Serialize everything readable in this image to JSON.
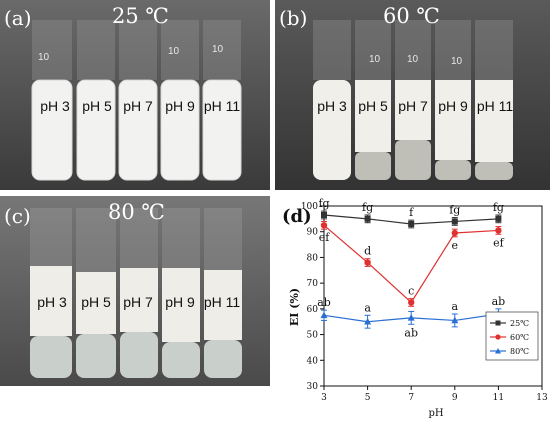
{
  "panels": {
    "a": {
      "letter": "(a)",
      "temp": "25 ℃",
      "tubes": [
        "pH 3",
        "pH 5",
        "pH 7",
        "pH 9",
        "pH 11"
      ],
      "marks": [
        "10",
        "10",
        "10"
      ]
    },
    "b": {
      "letter": "(b)",
      "temp": "60 ℃",
      "tubes": [
        "pH 3",
        "pH 5",
        "pH 7",
        "pH 9",
        "pH 11"
      ],
      "marks": [
        "10",
        "10",
        "10"
      ]
    },
    "c": {
      "letter": "(c)",
      "temp": "80 ℃",
      "tubes": [
        "pH 3",
        "pH 5",
        "pH 7",
        "pH 9",
        "pH 11"
      ]
    }
  },
  "chart_data": {
    "type": "line",
    "panel_letter": "(d)",
    "xlabel": "pH",
    "ylabel": "EI (%)",
    "xlim": [
      3,
      13
    ],
    "ylim": [
      30,
      100
    ],
    "xticks": [
      3,
      5,
      7,
      9,
      11,
      13
    ],
    "yticks": [
      30,
      40,
      50,
      60,
      70,
      80,
      90,
      100
    ],
    "x": [
      3,
      5,
      7,
      9,
      11
    ],
    "series": [
      {
        "name": "25℃",
        "color": "#333333",
        "marker": "square",
        "values": [
          96.5,
          95,
          93,
          94,
          95
        ],
        "err": [
          1.5,
          1.5,
          1.5,
          1.5,
          1.5
        ],
        "labels": [
          "fg",
          "fg",
          "f",
          "fg",
          "fg"
        ],
        "label_pos": [
          "above",
          "above",
          "above",
          "above",
          "above"
        ]
      },
      {
        "name": "60℃",
        "color": "#e03030",
        "marker": "circle",
        "values": [
          92.5,
          78,
          62.5,
          89.5,
          90.5
        ],
        "err": [
          1.5,
          1.5,
          1.5,
          1.5,
          1.5
        ],
        "labels": [
          "ef",
          "d",
          "c",
          "e",
          "ef"
        ],
        "label_pos": [
          "below",
          "above",
          "above",
          "below",
          "below"
        ]
      },
      {
        "name": "80℃",
        "color": "#2a6fd4",
        "marker": "triangle",
        "values": [
          57.5,
          55,
          56.5,
          55.5,
          58
        ],
        "err": [
          2,
          2.5,
          2.5,
          2.5,
          2
        ],
        "labels": [
          "ab",
          "a",
          "ab",
          "a",
          "ab"
        ],
        "label_pos": [
          "above",
          "above",
          "below",
          "above",
          "above"
        ]
      }
    ],
    "legend": "bottom-right",
    "grid": false
  }
}
